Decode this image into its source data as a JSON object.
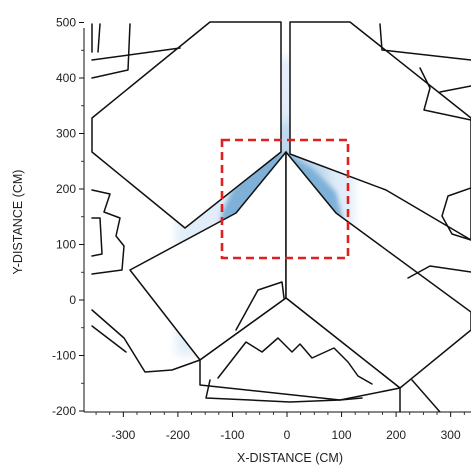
{
  "chart_data": {
    "type": "heatmap",
    "xlabel": "X-DISTANCE (CM)",
    "ylabel": "Y-DISTANCE (CM)",
    "xlim": [
      -380,
      330
    ],
    "ylim": [
      -200,
      500
    ],
    "x_ticks": [
      -300,
      -200,
      -100,
      0,
      100,
      200,
      300
    ],
    "y_ticks": [
      -200,
      -100,
      0,
      100,
      200,
      300,
      400,
      500
    ],
    "highlight_box": {
      "x": [
        -115,
        110
      ],
      "y": [
        75,
        290
      ],
      "color": "#e02020",
      "style": "dashed"
    },
    "heat_color": "#7fb1d8"
  }
}
